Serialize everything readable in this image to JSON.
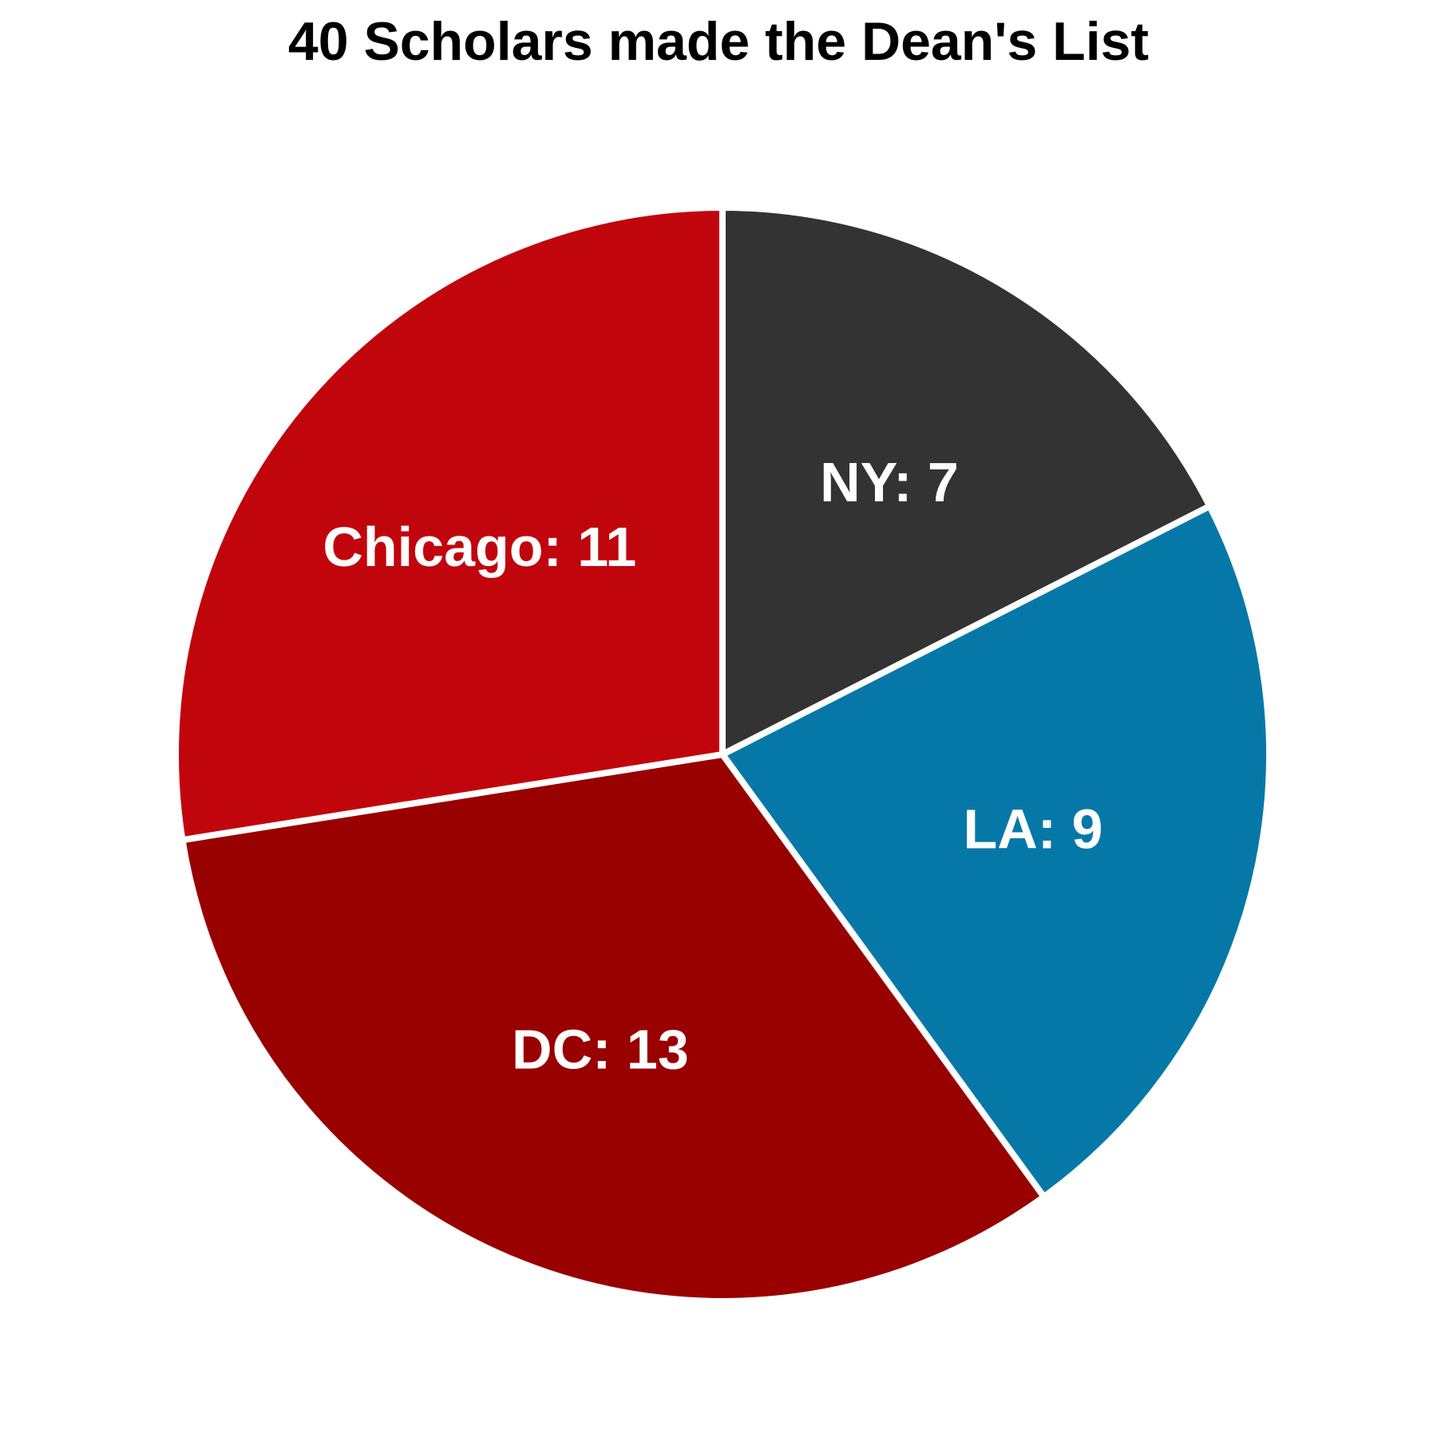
{
  "chart_data": {
    "type": "pie",
    "title": "40 Scholars made the Dean's List",
    "slices": [
      {
        "label": "NY: 7",
        "category": "NY",
        "value": 7,
        "color": "#333333"
      },
      {
        "label": "LA: 9",
        "category": "LA",
        "value": 9,
        "color": "#0678a8"
      },
      {
        "label": "DC: 13",
        "category": "DC",
        "value": 13,
        "color": "#990000"
      },
      {
        "label": "Chicago: 11",
        "category": "Chicago",
        "value": 11,
        "color": "#c1050d"
      }
    ],
    "start_direction": "top",
    "direction": "clockwise",
    "separator_color": "#ffffff"
  }
}
